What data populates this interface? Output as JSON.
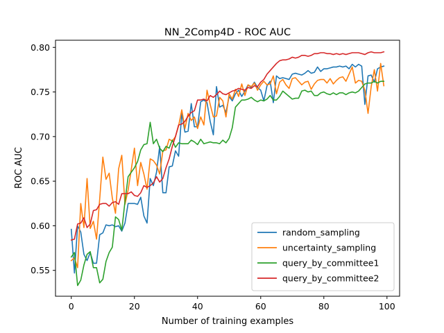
{
  "chart_data": {
    "type": "line",
    "title": "NN_2Comp4D - ROC AUC",
    "xlabel": "Number of training examples",
    "ylabel": "ROC AUC",
    "xlim": [
      -5,
      104
    ],
    "ylim": [
      0.521,
      0.808
    ],
    "xticks": [
      0,
      20,
      40,
      60,
      80,
      100
    ],
    "yticks": [
      0.55,
      0.6,
      0.65,
      0.7,
      0.75,
      0.8
    ],
    "xtick_labels": [
      "0",
      "20",
      "40",
      "60",
      "80",
      "100"
    ],
    "ytick_labels": [
      "0.55",
      "0.60",
      "0.65",
      "0.70",
      "0.75",
      "0.80"
    ],
    "grid": false,
    "legend_position": "lower-right",
    "series": [
      {
        "name": "random_sampling",
        "color": "#1f77b4",
        "x": [
          0,
          1,
          2,
          3,
          4,
          5,
          6,
          7,
          8,
          9,
          10,
          11,
          12,
          13,
          14,
          15,
          16,
          17,
          18,
          19,
          20,
          21,
          22,
          23,
          24,
          25,
          26,
          27,
          28,
          29,
          30,
          31,
          32,
          33,
          34,
          35,
          36,
          37,
          38,
          39,
          40,
          41,
          42,
          43,
          44,
          45,
          46,
          47,
          48,
          49,
          50,
          51,
          52,
          53,
          54,
          55,
          56,
          57,
          58,
          59,
          60,
          61,
          62,
          63,
          64,
          65,
          66,
          67,
          68,
          69,
          70,
          71,
          72,
          73,
          74,
          75,
          76,
          77,
          78,
          79,
          80,
          81,
          82,
          83,
          84,
          85,
          86,
          87,
          88,
          89,
          90,
          91,
          92,
          93,
          94,
          95,
          96,
          97,
          98,
          99
        ],
        "y": [
          0.596,
          0.547,
          0.6,
          0.593,
          0.568,
          0.561,
          0.57,
          0.558,
          0.558,
          0.59,
          0.592,
          0.601,
          0.6,
          0.601,
          0.599,
          0.6,
          0.594,
          0.603,
          0.625,
          0.625,
          0.625,
          0.624,
          0.632,
          0.611,
          0.603,
          0.653,
          0.645,
          0.66,
          0.689,
          0.637,
          0.637,
          0.666,
          0.667,
          0.684,
          0.678,
          0.726,
          0.705,
          0.706,
          0.737,
          0.711,
          0.711,
          0.739,
          0.741,
          0.738,
          0.717,
          0.702,
          0.756,
          0.733,
          0.735,
          0.727,
          0.745,
          0.74,
          0.748,
          0.752,
          0.745,
          0.751,
          0.758,
          0.755,
          0.761,
          0.755,
          0.752,
          0.74,
          0.757,
          0.762,
          0.738,
          0.768,
          0.765,
          0.766,
          0.765,
          0.764,
          0.77,
          0.771,
          0.77,
          0.769,
          0.771,
          0.774,
          0.771,
          0.772,
          0.778,
          0.773,
          0.776,
          0.776,
          0.777,
          0.778,
          0.778,
          0.779,
          0.778,
          0.779,
          0.776,
          0.781,
          0.778,
          0.781,
          0.779,
          0.736,
          0.768,
          0.769,
          0.761,
          0.776,
          0.778,
          0.779
        ]
      },
      {
        "name": "uncertainty_sampling",
        "color": "#ff7f0e",
        "x": [
          0,
          1,
          2,
          3,
          4,
          5,
          6,
          7,
          8,
          9,
          10,
          11,
          12,
          13,
          14,
          15,
          16,
          17,
          18,
          19,
          20,
          21,
          22,
          23,
          24,
          25,
          26,
          27,
          28,
          29,
          30,
          31,
          32,
          33,
          34,
          35,
          36,
          37,
          38,
          39,
          40,
          41,
          42,
          43,
          44,
          45,
          46,
          47,
          48,
          49,
          50,
          51,
          52,
          53,
          54,
          55,
          56,
          57,
          58,
          59,
          60,
          61,
          62,
          63,
          64,
          65,
          66,
          67,
          68,
          69,
          70,
          71,
          72,
          73,
          74,
          75,
          76,
          77,
          78,
          79,
          80,
          81,
          82,
          83,
          84,
          85,
          86,
          87,
          88,
          89,
          90,
          91,
          92,
          93,
          94,
          95,
          96,
          97,
          98,
          99
        ],
        "y": [
          0.561,
          0.564,
          0.553,
          0.625,
          0.598,
          0.653,
          0.597,
          0.605,
          0.585,
          0.63,
          0.677,
          0.652,
          0.659,
          0.631,
          0.614,
          0.664,
          0.679,
          0.624,
          0.64,
          0.663,
          0.687,
          0.645,
          0.671,
          0.658,
          0.641,
          0.675,
          0.673,
          0.668,
          0.658,
          0.684,
          0.685,
          0.697,
          0.695,
          0.7,
          0.712,
          0.73,
          0.709,
          0.726,
          0.718,
          0.722,
          0.709,
          0.722,
          0.713,
          0.752,
          0.736,
          0.722,
          0.723,
          0.744,
          0.74,
          0.722,
          0.748,
          0.742,
          0.753,
          0.745,
          0.759,
          0.746,
          0.758,
          0.756,
          0.76,
          0.752,
          0.758,
          0.762,
          0.758,
          0.759,
          0.768,
          0.748,
          0.761,
          0.764,
          0.758,
          0.754,
          0.765,
          0.766,
          0.762,
          0.758,
          0.761,
          0.762,
          0.753,
          0.759,
          0.763,
          0.764,
          0.764,
          0.76,
          0.765,
          0.759,
          0.763,
          0.766,
          0.767,
          0.762,
          0.77,
          0.778,
          0.76,
          0.763,
          0.762,
          0.752,
          0.726,
          0.756,
          0.775,
          0.751,
          0.782,
          0.757
        ]
      },
      {
        "name": "query_by_committee1",
        "color": "#2ca02c",
        "x": [
          0,
          1,
          2,
          3,
          4,
          5,
          6,
          7,
          8,
          9,
          10,
          11,
          12,
          13,
          14,
          15,
          16,
          17,
          18,
          19,
          20,
          21,
          22,
          23,
          24,
          25,
          26,
          27,
          28,
          29,
          30,
          31,
          32,
          33,
          34,
          35,
          36,
          37,
          38,
          39,
          40,
          41,
          42,
          43,
          44,
          45,
          46,
          47,
          48,
          49,
          50,
          51,
          52,
          53,
          54,
          55,
          56,
          57,
          58,
          59,
          60,
          61,
          62,
          63,
          64,
          65,
          66,
          67,
          68,
          69,
          70,
          71,
          72,
          73,
          74,
          75,
          76,
          77,
          78,
          79,
          80,
          81,
          82,
          83,
          84,
          85,
          86,
          87,
          88,
          89,
          90,
          91,
          92,
          93,
          94,
          95,
          96,
          97,
          98,
          99
        ],
        "y": [
          0.565,
          0.57,
          0.533,
          0.539,
          0.556,
          0.568,
          0.571,
          0.553,
          0.553,
          0.536,
          0.54,
          0.56,
          0.57,
          0.576,
          0.61,
          0.607,
          0.595,
          0.627,
          0.655,
          0.66,
          0.665,
          0.672,
          0.685,
          0.691,
          0.692,
          0.716,
          0.692,
          0.697,
          0.687,
          0.683,
          0.689,
          0.687,
          0.696,
          0.688,
          0.693,
          0.692,
          0.692,
          0.692,
          0.696,
          0.694,
          0.691,
          0.697,
          0.692,
          0.693,
          0.694,
          0.693,
          0.693,
          0.692,
          0.696,
          0.693,
          0.698,
          0.71,
          0.733,
          0.737,
          0.741,
          0.741,
          0.742,
          0.744,
          0.741,
          0.739,
          0.741,
          0.74,
          0.742,
          0.746,
          0.741,
          0.741,
          0.745,
          0.751,
          0.748,
          0.745,
          0.742,
          0.743,
          0.743,
          0.751,
          0.752,
          0.75,
          0.751,
          0.746,
          0.746,
          0.749,
          0.75,
          0.748,
          0.747,
          0.749,
          0.747,
          0.749,
          0.749,
          0.747,
          0.749,
          0.75,
          0.749,
          0.751,
          0.755,
          0.759,
          0.76,
          0.76,
          0.762,
          0.76,
          0.762,
          0.762
        ]
      },
      {
        "name": "query_by_committee2",
        "color": "#d62728",
        "x": [
          0,
          1,
          2,
          3,
          4,
          5,
          6,
          7,
          8,
          9,
          10,
          11,
          12,
          13,
          14,
          15,
          16,
          17,
          18,
          19,
          20,
          21,
          22,
          23,
          24,
          25,
          26,
          27,
          28,
          29,
          30,
          31,
          32,
          33,
          34,
          35,
          36,
          37,
          38,
          39,
          40,
          41,
          42,
          43,
          44,
          45,
          46,
          47,
          48,
          49,
          50,
          51,
          52,
          53,
          54,
          55,
          56,
          57,
          58,
          59,
          60,
          61,
          62,
          63,
          64,
          65,
          66,
          67,
          68,
          69,
          70,
          71,
          72,
          73,
          74,
          75,
          76,
          77,
          78,
          79,
          80,
          81,
          82,
          83,
          84,
          85,
          86,
          87,
          88,
          89,
          90,
          91,
          92,
          93,
          94,
          95,
          96,
          97,
          98,
          99
        ],
        "y": [
          0.584,
          0.585,
          0.602,
          0.603,
          0.609,
          0.598,
          0.602,
          0.617,
          0.618,
          0.624,
          0.625,
          0.625,
          0.622,
          0.626,
          0.627,
          0.624,
          0.636,
          0.636,
          0.636,
          0.638,
          0.634,
          0.633,
          0.637,
          0.645,
          0.643,
          0.645,
          0.648,
          0.655,
          0.649,
          0.653,
          0.665,
          0.675,
          0.689,
          0.7,
          0.713,
          0.714,
          0.717,
          0.723,
          0.727,
          0.729,
          0.741,
          0.741,
          0.742,
          0.74,
          0.746,
          0.744,
          0.747,
          0.751,
          0.748,
          0.747,
          0.749,
          0.751,
          0.752,
          0.754,
          0.753,
          0.752,
          0.755,
          0.754,
          0.757,
          0.756,
          0.761,
          0.764,
          0.77,
          0.774,
          0.778,
          0.782,
          0.785,
          0.786,
          0.786,
          0.787,
          0.789,
          0.788,
          0.789,
          0.791,
          0.791,
          0.79,
          0.791,
          0.793,
          0.793,
          0.794,
          0.794,
          0.793,
          0.793,
          0.792,
          0.793,
          0.792,
          0.793,
          0.792,
          0.793,
          0.794,
          0.794,
          0.794,
          0.793,
          0.792,
          0.794,
          0.795,
          0.794,
          0.794,
          0.794,
          0.795
        ]
      }
    ]
  }
}
